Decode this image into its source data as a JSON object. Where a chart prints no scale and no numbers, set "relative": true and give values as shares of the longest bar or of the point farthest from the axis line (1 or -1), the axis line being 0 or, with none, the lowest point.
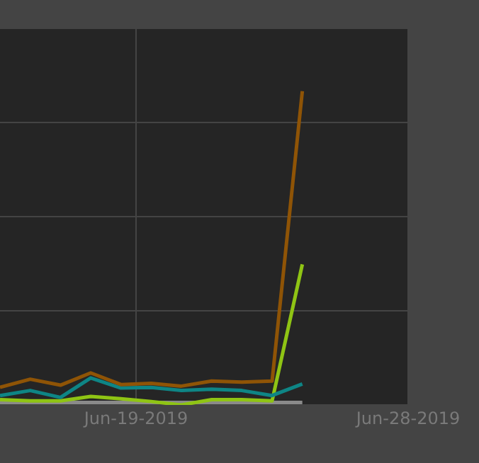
{
  "chart_data": {
    "type": "line",
    "relative": true,
    "grid": true,
    "legend": false,
    "marker": "none",
    "line_style": "solid",
    "x": [
      "2019-06-14T12:00",
      "2019-06-15T12:00",
      "2019-06-16T12:00",
      "2019-06-17T12:00",
      "2019-06-18T12:00",
      "2019-06-19T12:00",
      "2019-06-20T12:00",
      "2019-06-21T12:00",
      "2019-06-22T12:00",
      "2019-06-23T12:00",
      "2019-06-24T12:00"
    ],
    "xlim": [
      "2019-06-14T12:00",
      "2019-06-28"
    ],
    "xticks": [
      {
        "value": "2019-06-19",
        "label": "Jun-19-2019"
      },
      {
        "value": "2019-06-28",
        "label": "Jun-28-2019"
      }
    ],
    "series": [
      {
        "color": "#8f5406",
        "values": [
          0.056,
          0.082,
          0.063,
          0.102,
          0.065,
          0.069,
          0.06,
          0.076,
          0.073,
          0.076,
          1
        ]
      },
      {
        "color": "#0e8585",
        "values": [
          0.03,
          0.046,
          0.024,
          0.086,
          0.054,
          0.056,
          0.046,
          0.05,
          0.046,
          0.03,
          0.067
        ]
      },
      {
        "color": "#8fc414",
        "values": [
          0.017,
          0.013,
          0.013,
          0.027,
          0.02,
          0.011,
          0,
          0.017,
          0.017,
          0.013,
          0.448
        ]
      },
      {
        "color": "#8a8a8a",
        "values": [
          0.008,
          0.008,
          0.008,
          0.008,
          0.008,
          0.008,
          0.008,
          0.008,
          0.008,
          0.008,
          0.008
        ]
      }
    ]
  }
}
